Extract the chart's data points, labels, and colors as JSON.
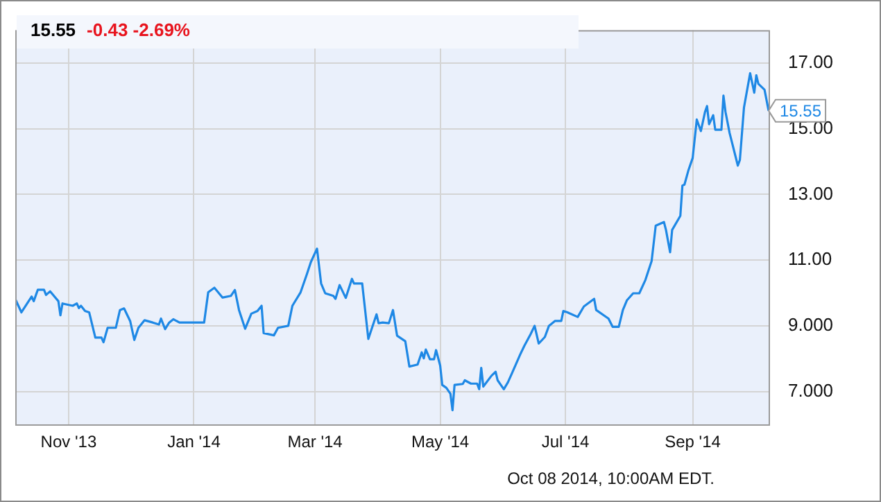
{
  "chart_data": {
    "type": "line",
    "title": "15.55",
    "subtitle": "-0.43  -2.69%",
    "x": [
      "2013-10-06",
      "2013-10-09",
      "2013-10-14",
      "2013-10-15",
      "2013-10-17",
      "2013-10-20",
      "2013-10-21",
      "2013-10-23",
      "2013-10-27",
      "2013-10-28",
      "2013-10-29",
      "2013-11-03",
      "2013-11-05",
      "2013-11-06",
      "2013-11-07",
      "2013-11-09",
      "2013-11-11",
      "2013-11-14",
      "2013-11-17",
      "2013-11-18",
      "2013-11-20",
      "2013-11-24",
      "2013-11-26",
      "2013-11-28",
      "2013-12-01",
      "2013-12-03",
      "2013-12-05",
      "2013-12-08",
      "2013-12-12",
      "2013-12-15",
      "2013-12-16",
      "2013-12-18",
      "2013-12-20",
      "2013-12-22",
      "2013-12-25",
      "2014-01-06",
      "2014-01-08",
      "2014-01-11",
      "2014-01-15",
      "2014-01-19",
      "2014-01-21",
      "2014-01-23",
      "2014-01-26",
      "2014-01-29",
      "2014-02-01",
      "2014-02-03",
      "2014-02-04",
      "2014-02-09",
      "2014-02-11",
      "2014-02-16",
      "2014-02-18",
      "2014-02-22",
      "2014-02-25",
      "2014-02-27",
      "2014-03-02",
      "2014-03-04",
      "2014-03-06",
      "2014-03-10",
      "2014-03-11",
      "2014-03-13",
      "2014-03-16",
      "2014-03-19",
      "2014-03-20",
      "2014-03-24",
      "2014-03-27",
      "2014-03-31",
      "2014-04-01",
      "2014-04-03",
      "2014-04-06",
      "2014-04-08",
      "2014-04-10",
      "2014-04-14",
      "2014-04-16",
      "2014-04-20",
      "2014-04-22",
      "2014-04-23",
      "2014-04-24",
      "2014-04-26",
      "2014-04-28",
      "2014-04-29",
      "2014-05-01",
      "2014-05-02",
      "2014-05-04",
      "2014-05-06",
      "2014-05-07",
      "2014-05-08",
      "2014-05-12",
      "2014-05-13",
      "2014-05-16",
      "2014-05-19",
      "2014-05-20",
      "2014-05-21",
      "2014-05-22",
      "2014-05-26",
      "2014-05-28",
      "2014-05-29",
      "2014-06-01",
      "2014-06-03",
      "2014-06-05",
      "2014-06-09",
      "2014-06-11",
      "2014-06-14",
      "2014-06-16",
      "2014-06-18",
      "2014-06-21",
      "2014-06-23",
      "2014-06-26",
      "2014-06-29",
      "2014-06-30",
      "2014-07-02",
      "2014-07-07",
      "2014-07-10",
      "2014-07-15",
      "2014-07-16",
      "2014-07-22",
      "2014-07-24",
      "2014-07-27",
      "2014-07-29",
      "2014-07-31",
      "2014-08-03",
      "2014-08-06",
      "2014-08-09",
      "2014-08-12",
      "2014-08-14",
      "2014-08-18",
      "2014-08-19",
      "2014-08-21",
      "2014-08-22",
      "2014-08-26",
      "2014-08-27",
      "2014-08-28",
      "2014-08-30",
      "2014-09-01",
      "2014-09-03",
      "2014-09-05",
      "2014-09-07",
      "2014-09-08",
      "2014-09-09",
      "2014-09-11",
      "2014-09-12",
      "2014-09-15",
      "2014-09-16",
      "2014-09-17",
      "2014-09-19",
      "2014-09-23",
      "2014-09-24",
      "2014-09-26",
      "2014-09-29",
      "2014-10-01",
      "2014-10-02",
      "2014-10-03",
      "2014-10-06",
      "2014-10-08"
    ],
    "series": [
      {
        "color": "#1e88e5",
        "values": [
          9.82,
          9.41,
          9.89,
          9.75,
          10.1,
          10.1,
          9.94,
          10.05,
          9.75,
          9.32,
          9.68,
          9.61,
          9.68,
          9.54,
          9.61,
          9.45,
          9.41,
          8.64,
          8.64,
          8.5,
          8.94,
          8.94,
          9.48,
          9.53,
          9.14,
          8.57,
          8.94,
          9.17,
          9.1,
          9.04,
          9.22,
          8.9,
          9.1,
          9.2,
          9.1,
          9.1,
          10.02,
          10.16,
          9.86,
          9.91,
          10.09,
          9.48,
          8.91,
          9.37,
          9.45,
          9.61,
          8.78,
          8.71,
          8.94,
          9.0,
          9.61,
          10.02,
          10.56,
          10.94,
          11.35,
          10.29,
          9.99,
          9.91,
          9.82,
          10.24,
          9.85,
          10.43,
          10.29,
          10.29,
          8.6,
          9.35,
          9.08,
          9.1,
          9.08,
          9.48,
          8.7,
          8.53,
          7.76,
          7.82,
          8.19,
          8.01,
          8.28,
          7.98,
          7.98,
          8.26,
          7.79,
          7.2,
          7.11,
          6.93,
          6.43,
          7.2,
          7.23,
          7.34,
          7.24,
          7.24,
          7.07,
          7.72,
          7.15,
          7.48,
          7.6,
          7.34,
          7.07,
          7.28,
          7.56,
          8.13,
          8.39,
          8.74,
          9.0,
          8.46,
          8.66,
          9.0,
          9.15,
          9.15,
          9.45,
          9.41,
          9.27,
          9.59,
          9.82,
          9.48,
          9.22,
          8.97,
          8.97,
          9.48,
          9.78,
          9.99,
          9.99,
          10.4,
          10.97,
          12.05,
          12.16,
          11.92,
          11.24,
          11.92,
          12.35,
          13.27,
          13.3,
          13.75,
          14.11,
          15.28,
          14.93,
          15.51,
          15.69,
          15.14,
          15.41,
          14.97,
          14.97,
          16.01,
          15.51,
          14.87,
          13.88,
          14.05,
          15.65,
          16.69,
          16.1,
          16.63,
          16.37,
          16.19,
          15.55
        ]
      }
    ],
    "xlim": [
      "2013-10-06",
      "2014-10-08"
    ],
    "xticks": [
      {
        "value": "2013-11-01",
        "label": "Nov '13"
      },
      {
        "value": "2014-01-01",
        "label": "Jan '14"
      },
      {
        "value": "2014-03-01",
        "label": "Mar '14"
      },
      {
        "value": "2014-05-01",
        "label": "May '14"
      },
      {
        "value": "2014-07-01",
        "label": "Jul '14"
      },
      {
        "value": "2014-09-01",
        "label": "Sep '14"
      }
    ],
    "ylim": [
      6.0,
      18.0
    ],
    "yticks": [
      {
        "value": 7,
        "label": "7.000"
      },
      {
        "value": 9,
        "label": "9.000"
      },
      {
        "value": 11,
        "label": "11.00"
      },
      {
        "value": 13,
        "label": "13.00"
      },
      {
        "value": 15,
        "label": "15.00"
      },
      {
        "value": 17,
        "label": "17.00"
      }
    ],
    "grid": true,
    "annotations": [
      "Oct 08 2014, 10:00AM EDT.",
      {
        "text": "15.55",
        "x": "2014-10-08",
        "y": 15.55
      }
    ]
  }
}
